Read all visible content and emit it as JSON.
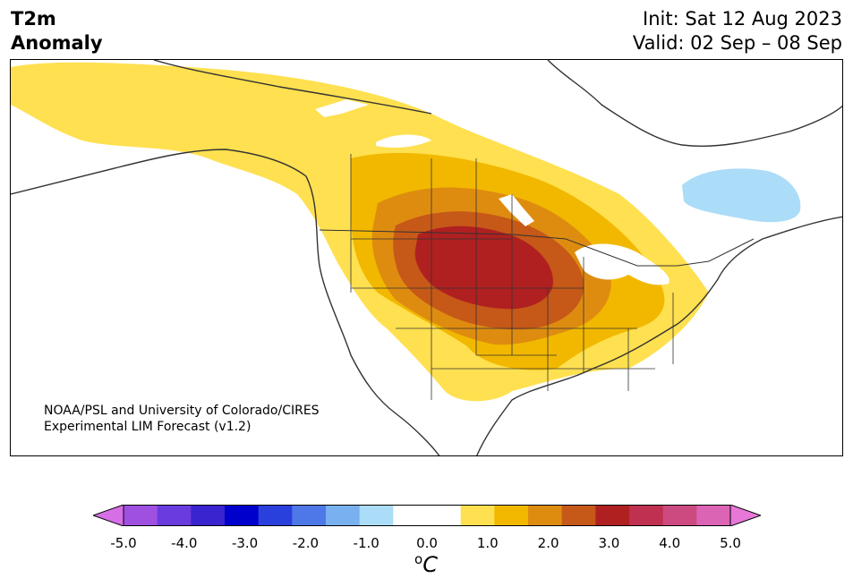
{
  "title": {
    "line1": "T2m",
    "line2": "Anomaly"
  },
  "dates": {
    "init": "Init: Sat 12 Aug 2023",
    "valid": "Valid: 02 Sep – 08 Sep"
  },
  "credit": {
    "line1": "NOAA/PSL and University of Colorado/CIRES",
    "line2": "Experimental LIM Forecast (v1.2)"
  },
  "colorbar": {
    "colors": [
      "#d66ee6",
      "#a050e0",
      "#6a3ce0",
      "#3a24d0",
      "#0000cc",
      "#2a40dc",
      "#4e78e8",
      "#78b0f0",
      "#abdcf8",
      "#ffffff",
      "#ffffff",
      "#ffe050",
      "#f2b800",
      "#de8c10",
      "#c65818",
      "#b02020",
      "#c03050",
      "#cc4a80",
      "#dc64b4",
      "#e878d8"
    ],
    "ticks": [
      "-5.0",
      "-4.0",
      "-3.0",
      "-2.0",
      "-1.0",
      "0.0",
      "1.0",
      "2.0",
      "3.0",
      "4.0",
      "5.0"
    ],
    "unit_base": "C",
    "unit_sup": "o"
  }
}
